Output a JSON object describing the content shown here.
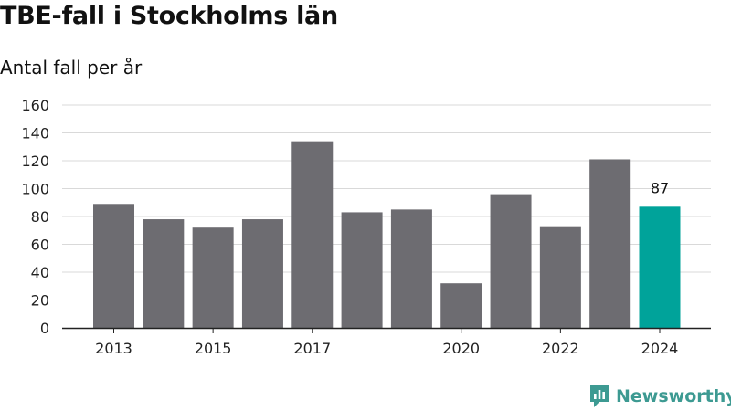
{
  "title": "TBE-fall i Stockholms län",
  "subtitle": "Antal fall per år",
  "brand": {
    "name": "Newsworthy",
    "color": "#3d9a92",
    "icon": "newsworthy-logo-icon"
  },
  "colors": {
    "bar": "#6d6c71",
    "highlight": "#00a39a",
    "grid": "#d9d9d9",
    "axis": "#222222"
  },
  "chart_data": {
    "type": "bar",
    "title": "TBE-fall i Stockholms län",
    "subtitle": "Antal fall per år",
    "xlabel": "",
    "ylabel": "",
    "categories": [
      "2013",
      "2014",
      "2015",
      "2016",
      "2017",
      "2018",
      "2019",
      "2020",
      "2021",
      "2022",
      "2023",
      "2024"
    ],
    "x_tick_labels": [
      "2013",
      "",
      "2015",
      "",
      "2017",
      "",
      "",
      "2020",
      "",
      "2022",
      "",
      "2024"
    ],
    "values": [
      89,
      78,
      72,
      78,
      134,
      83,
      85,
      32,
      96,
      73,
      121,
      87
    ],
    "highlight_index": 11,
    "data_labels": [
      {
        "index": 11,
        "text": "87"
      }
    ],
    "ylim": [
      0,
      160
    ],
    "yticks": [
      0,
      20,
      40,
      60,
      80,
      100,
      120,
      140,
      160
    ],
    "grid": true,
    "legend": "none"
  }
}
